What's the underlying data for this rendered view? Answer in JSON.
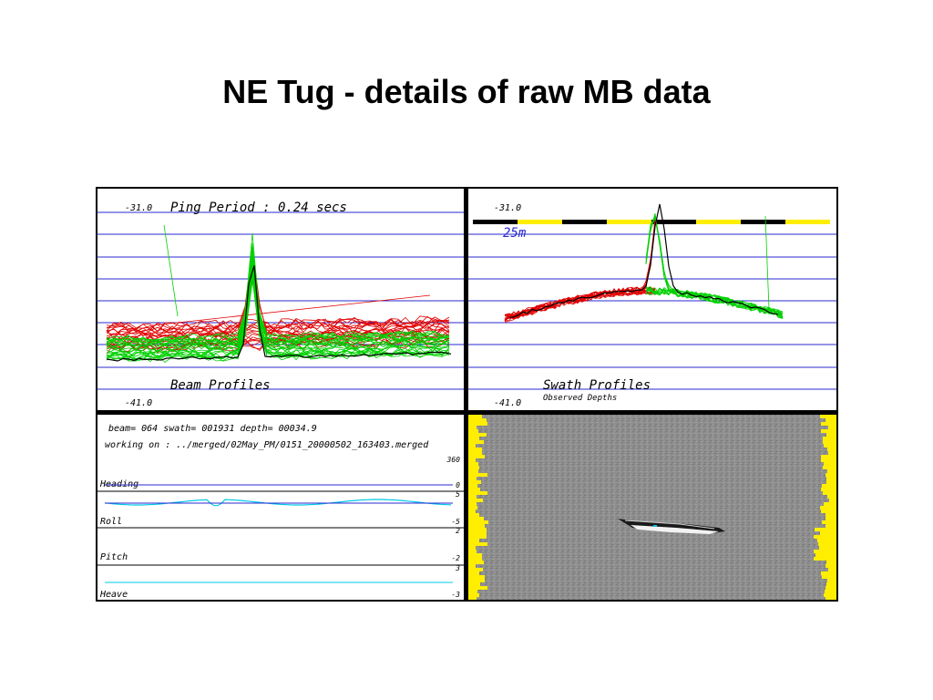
{
  "slide": {
    "title": "NE Tug - details of raw MB data"
  },
  "beam_panel": {
    "top_label": "-31.0",
    "bottom_label": "-41.0",
    "ping_period": "Ping Period : 0.24 secs",
    "caption": "Beam Profiles"
  },
  "swath_panel": {
    "top_label": "-31.0",
    "bottom_label": "-41.0",
    "scale_label": "25m",
    "caption": "Swath Profiles",
    "subcaption": "Observed Depths"
  },
  "attitude_panel": {
    "status_line": "beam= 064 swath= 001931 depth= 00034.9",
    "working_line": "working on : ../merged/02May_PM/0151_20000502_163403.merged",
    "tracks": [
      {
        "name": "Heading",
        "max": "360",
        "min": "0"
      },
      {
        "name": "Roll",
        "max": "5",
        "min": "-5"
      },
      {
        "name": "Pitch",
        "max": "2",
        "min": "-2"
      },
      {
        "name": "Heave",
        "max": "3",
        "min": "-3"
      }
    ]
  },
  "colors": {
    "grid": "#2a2ad0",
    "port": "#e00000",
    "starboard": "#00d000",
    "scale_black": "#000000",
    "scale_yellow": "#ffee00",
    "attitude_line": "#00c8e8",
    "sidescan_gray": "#8c8c8c"
  }
}
